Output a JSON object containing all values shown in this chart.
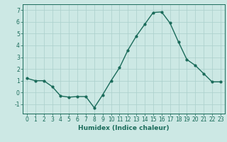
{
  "x": [
    0,
    1,
    2,
    3,
    4,
    5,
    6,
    7,
    8,
    9,
    10,
    11,
    12,
    13,
    14,
    15,
    16,
    17,
    18,
    19,
    20,
    21,
    22,
    23
  ],
  "y": [
    1.2,
    1.0,
    1.0,
    0.5,
    -0.3,
    -0.4,
    -0.35,
    -0.35,
    -1.3,
    -0.2,
    1.0,
    2.1,
    3.6,
    4.8,
    5.8,
    6.8,
    6.85,
    5.9,
    4.3,
    2.8,
    2.3,
    1.6,
    0.9,
    0.9
  ],
  "line_color": "#1a6b5a",
  "marker": "o",
  "marker_size": 2.0,
  "bg_color": "#cce8e4",
  "grid_color": "#aacfcb",
  "xlabel": "Humidex (Indice chaleur)",
  "ylim": [
    -1.8,
    7.5
  ],
  "xlim": [
    -0.5,
    23.5
  ],
  "yticks": [
    -1,
    0,
    1,
    2,
    3,
    4,
    5,
    6,
    7
  ],
  "xticks": [
    0,
    1,
    2,
    3,
    4,
    5,
    6,
    7,
    8,
    9,
    10,
    11,
    12,
    13,
    14,
    15,
    16,
    17,
    18,
    19,
    20,
    21,
    22,
    23
  ],
  "xlabel_fontsize": 6.5,
  "tick_fontsize": 5.5,
  "line_width": 1.0
}
